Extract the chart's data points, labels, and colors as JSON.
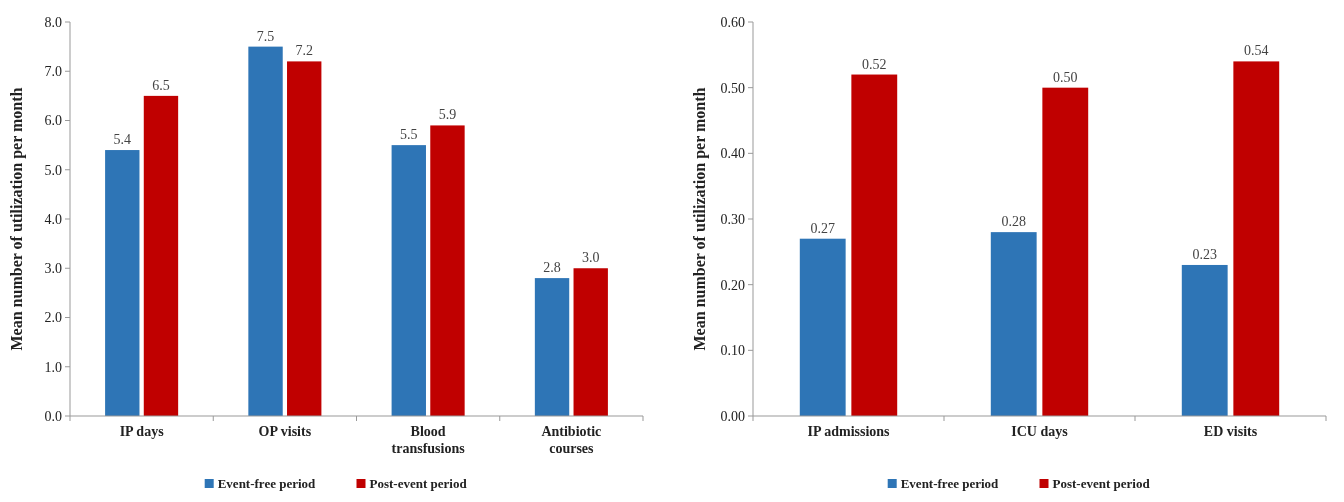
{
  "chart_data": [
    {
      "type": "bar",
      "ylabel": "Mean number of utilization per month",
      "categories": [
        "IP days",
        "OP visits",
        "Blood transfusions",
        "Antibiotic courses"
      ],
      "ylim": [
        0,
        8
      ],
      "yticks": [
        {
          "value": 0,
          "label": "0.0"
        },
        {
          "value": 1,
          "label": "1.0"
        },
        {
          "value": 2,
          "label": "2.0"
        },
        {
          "value": 3,
          "label": "3.0"
        },
        {
          "value": 4,
          "label": "4.0"
        },
        {
          "value": 5,
          "label": "5.0"
        },
        {
          "value": 6,
          "label": "6.0"
        },
        {
          "value": 7,
          "label": "7.0"
        },
        {
          "value": 8,
          "label": "8.0"
        }
      ],
      "grid": false,
      "legend": "bottom",
      "series": [
        {
          "name": "Event-free period",
          "color": "#2e75b6",
          "values": [
            5.4,
            7.5,
            5.5,
            2.8
          ],
          "value_labels": [
            "5.4",
            "7.5",
            "5.5",
            "2.8"
          ]
        },
        {
          "name": "Post-event period",
          "color": "#c00000",
          "values": [
            6.5,
            7.2,
            5.9,
            3.0
          ],
          "value_labels": [
            "6.5",
            "7.2",
            "5.9",
            "3.0"
          ]
        }
      ]
    },
    {
      "type": "bar",
      "ylabel": "Mean number of utilization per month",
      "categories": [
        "IP admissions",
        "ICU days",
        "ED visits"
      ],
      "ylim": [
        0,
        0.6
      ],
      "yticks": [
        {
          "value": 0,
          "label": "0.00"
        },
        {
          "value": 0.1,
          "label": "0.10"
        },
        {
          "value": 0.2,
          "label": "0.20"
        },
        {
          "value": 0.3,
          "label": "0.30"
        },
        {
          "value": 0.4,
          "label": "0.40"
        },
        {
          "value": 0.5,
          "label": "0.50"
        },
        {
          "value": 0.6,
          "label": "0.60"
        }
      ],
      "grid": false,
      "legend": "bottom",
      "series": [
        {
          "name": "Event-free period",
          "color": "#2e75b6",
          "values": [
            0.27,
            0.28,
            0.23
          ],
          "value_labels": [
            "0.27",
            "0.28",
            "0.23"
          ]
        },
        {
          "name": "Post-event period",
          "color": "#c00000",
          "values": [
            0.52,
            0.5,
            0.54
          ],
          "value_labels": [
            "0.52",
            "0.50",
            "0.54"
          ]
        }
      ]
    }
  ]
}
